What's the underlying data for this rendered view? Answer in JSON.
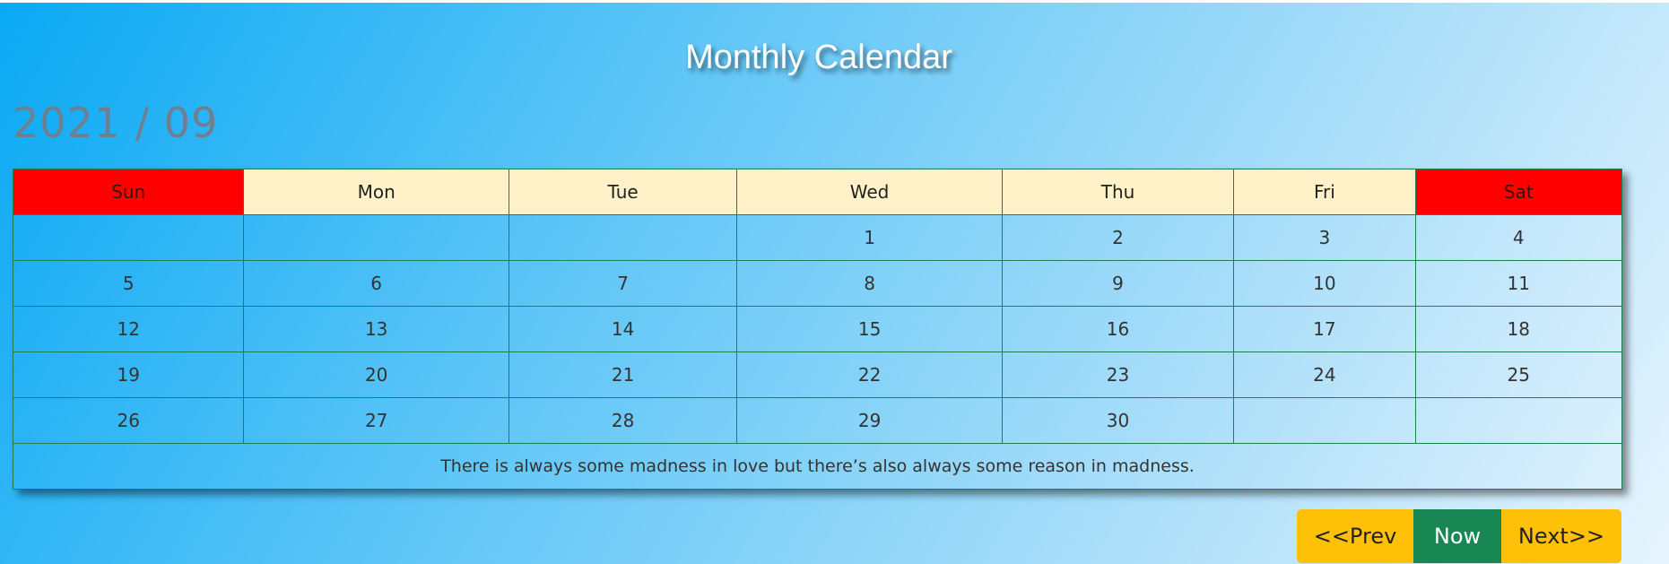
{
  "header": {
    "title": "Monthly Calendar",
    "month_label": "2021 / 09"
  },
  "calendar": {
    "weekdays": [
      "Sun",
      "Mon",
      "Tue",
      "Wed",
      "Thu",
      "Fri",
      "Sat"
    ],
    "weeks": [
      [
        "",
        "",
        "",
        "1",
        "2",
        "3",
        "4"
      ],
      [
        "5",
        "6",
        "7",
        "8",
        "9",
        "10",
        "11"
      ],
      [
        "12",
        "13",
        "14",
        "15",
        "16",
        "17",
        "18"
      ],
      [
        "19",
        "20",
        "21",
        "22",
        "23",
        "24",
        "25"
      ],
      [
        "26",
        "27",
        "28",
        "29",
        "30",
        "",
        ""
      ]
    ],
    "quote": "There is always some madness in love but there’s also always some reason in madness."
  },
  "nav": {
    "prev_label": "<<Prev",
    "now_label": "Now",
    "next_label": "Next>>"
  },
  "colors": {
    "weekend_header": "#ff0000",
    "weekday_header": "#fff2c8",
    "border": "#1d7f52",
    "prev_next_button": "#ffc107",
    "now_button": "#198754"
  }
}
